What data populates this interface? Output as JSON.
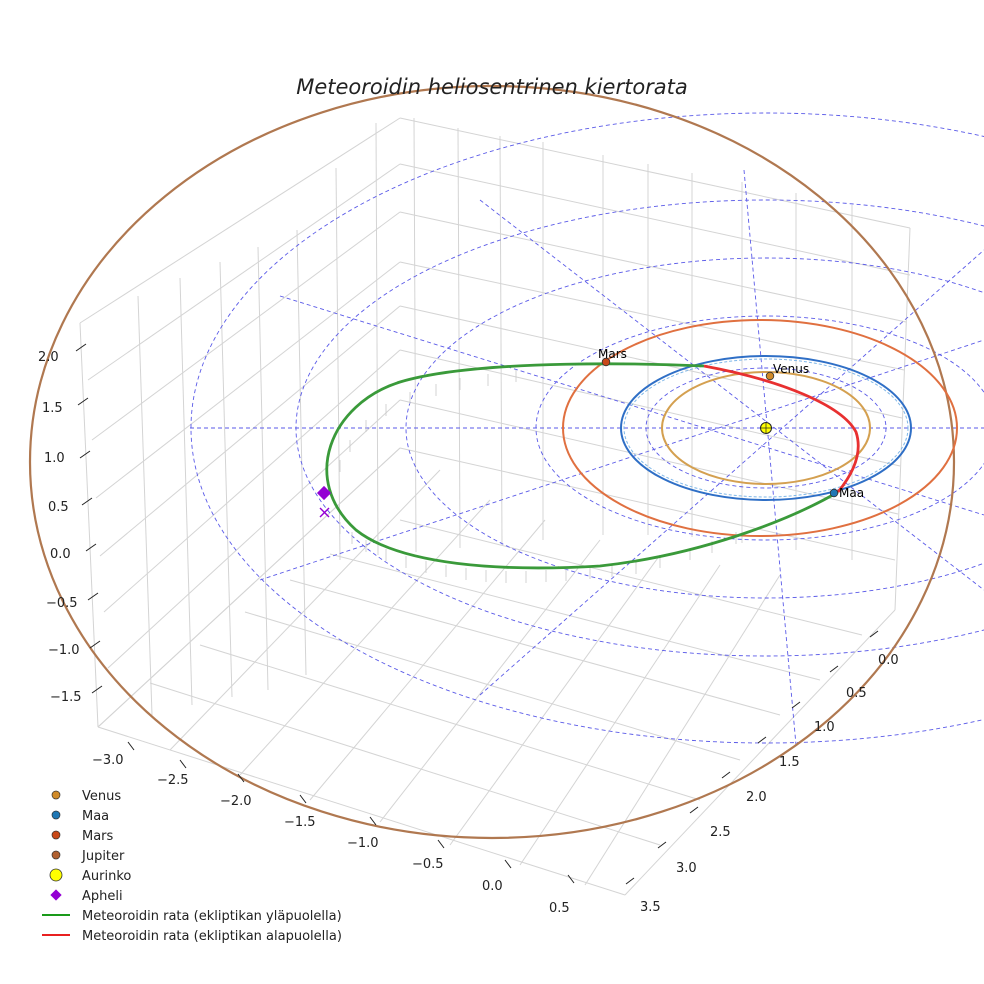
{
  "chart_data": {
    "type": "line",
    "projection": "3d",
    "title": "Meteoroidin heliosentrinen kiertorata",
    "axes": {
      "x": {
        "ticks": [
          "−3.0",
          "−2.5",
          "−2.0",
          "−1.5",
          "−1.0",
          "−0.5",
          "0.0",
          "0.5"
        ],
        "range": [
          -3.2,
          0.7
        ]
      },
      "y": {
        "ticks": [
          "0.0",
          "0.5",
          "1.0",
          "1.5",
          "2.0",
          "2.5",
          "3.0",
          "3.5"
        ],
        "range": [
          -0.2,
          3.6
        ]
      },
      "z": {
        "ticks": [
          "2.0",
          "1.5",
          "1.0",
          "0.5",
          "0.0",
          "−0.5",
          "−1.0",
          "−1.5"
        ],
        "range": [
          -1.7,
          2.2
        ]
      }
    },
    "orbits": [
      {
        "name": "Venus",
        "a_au": 0.72,
        "color": "#d4a050"
      },
      {
        "name": "Maa",
        "a_au": 1.0,
        "color": "#2f6fc6"
      },
      {
        "name": "Mars",
        "a_au": 1.52,
        "color": "#e07040"
      },
      {
        "name": "Jupiter",
        "a_au": 5.2,
        "color": "#b07850"
      }
    ],
    "point_labels": {
      "venus": "Venus",
      "earth": "Maa",
      "mars": "Mars"
    },
    "meteoroid_orbit": {
      "perihelion_au": 0.98,
      "aphelion_au": 3.1,
      "segments": [
        {
          "name": "Meteoroidin rata (ekliptikan yläpuolella)",
          "color": "#3a9a3a"
        },
        {
          "name": "Meteoroidin rata (ekliptikan alapuolella)",
          "color": "#e83030"
        }
      ]
    },
    "legend": [
      {
        "label": "Venus",
        "marker": "dot",
        "color": "#d08a28"
      },
      {
        "label": "Maa",
        "marker": "dot",
        "color": "#1f77b4"
      },
      {
        "label": "Mars",
        "marker": "dot",
        "color": "#c84818"
      },
      {
        "label": "Jupiter",
        "marker": "dot",
        "color": "#b06030"
      },
      {
        "label": "Aurinko",
        "marker": "sun",
        "color": "#ffff00"
      },
      {
        "label": "Apheli",
        "marker": "diamond",
        "color": "#9400d3"
      },
      {
        "label": "Meteoroidin rata (ekliptikan yläpuolella)",
        "marker": "line",
        "color": "#1a9a1a"
      },
      {
        "label": "Meteoroidin rata (ekliptikan alapuolella)",
        "marker": "line",
        "color": "#e82020"
      }
    ],
    "legend_position": "lower-left"
  }
}
